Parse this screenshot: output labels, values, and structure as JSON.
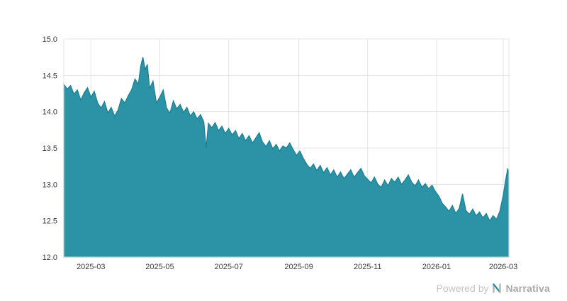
{
  "watermark": {
    "prefix": "Powered by",
    "brand": "Narrativa"
  },
  "chart_data": {
    "type": "area",
    "title": "",
    "xlabel": "",
    "ylabel": "",
    "legend": false,
    "grid": true,
    "ylim": [
      12.0,
      15.0
    ],
    "x_range": [
      "2025-02-05",
      "2026-03-06"
    ],
    "y_ticks": [
      12.0,
      12.5,
      13.0,
      13.5,
      14.0,
      14.5,
      15.0
    ],
    "x_ticks": [
      {
        "label": "2025-03",
        "date": "2025-03-01"
      },
      {
        "label": "2025-05",
        "date": "2025-05-01"
      },
      {
        "label": "2025-07",
        "date": "2025-07-01"
      },
      {
        "label": "2025-09",
        "date": "2025-09-01"
      },
      {
        "label": "2025-11",
        "date": "2025-11-01"
      },
      {
        "label": "2026-01",
        "date": "2026-01-01"
      },
      {
        "label": "2026-03",
        "date": "2026-03-01"
      }
    ],
    "colors": {
      "area": "#2b93a5",
      "line": "#1d7e91",
      "grid": "#e4e4e4",
      "tick_text": "#3c3c3c"
    },
    "points": [
      [
        "2025-02-05",
        14.38
      ],
      [
        "2025-02-08",
        14.31
      ],
      [
        "2025-02-11",
        14.36
      ],
      [
        "2025-02-14",
        14.24
      ],
      [
        "2025-02-17",
        14.3
      ],
      [
        "2025-02-20",
        14.16
      ],
      [
        "2025-02-23",
        14.26
      ],
      [
        "2025-02-26",
        14.33
      ],
      [
        "2025-03-01",
        14.2
      ],
      [
        "2025-03-04",
        14.28
      ],
      [
        "2025-03-07",
        14.12
      ],
      [
        "2025-03-10",
        14.05
      ],
      [
        "2025-03-13",
        14.14
      ],
      [
        "2025-03-16",
        13.98
      ],
      [
        "2025-03-19",
        14.06
      ],
      [
        "2025-03-22",
        13.94
      ],
      [
        "2025-03-25",
        14.02
      ],
      [
        "2025-03-28",
        14.18
      ],
      [
        "2025-03-31",
        14.12
      ],
      [
        "2025-04-03",
        14.22
      ],
      [
        "2025-04-06",
        14.3
      ],
      [
        "2025-04-09",
        14.45
      ],
      [
        "2025-04-12",
        14.38
      ],
      [
        "2025-04-14",
        14.62
      ],
      [
        "2025-04-16",
        14.75
      ],
      [
        "2025-04-18",
        14.58
      ],
      [
        "2025-04-20",
        14.65
      ],
      [
        "2025-04-22",
        14.32
      ],
      [
        "2025-04-25",
        14.42
      ],
      [
        "2025-04-28",
        14.12
      ],
      [
        "2025-05-01",
        14.2
      ],
      [
        "2025-05-04",
        14.3
      ],
      [
        "2025-05-07",
        14.05
      ],
      [
        "2025-05-10",
        13.98
      ],
      [
        "2025-05-13",
        14.15
      ],
      [
        "2025-05-16",
        14.04
      ],
      [
        "2025-05-19",
        14.1
      ],
      [
        "2025-05-22",
        13.99
      ],
      [
        "2025-05-25",
        14.06
      ],
      [
        "2025-05-28",
        13.94
      ],
      [
        "2025-05-31",
        14.0
      ],
      [
        "2025-06-03",
        13.9
      ],
      [
        "2025-06-06",
        13.96
      ],
      [
        "2025-06-09",
        13.86
      ],
      [
        "2025-06-11",
        13.5
      ],
      [
        "2025-06-13",
        13.84
      ],
      [
        "2025-06-16",
        13.78
      ],
      [
        "2025-06-19",
        13.85
      ],
      [
        "2025-06-22",
        13.74
      ],
      [
        "2025-06-25",
        13.8
      ],
      [
        "2025-06-28",
        13.7
      ],
      [
        "2025-07-01",
        13.77
      ],
      [
        "2025-07-04",
        13.68
      ],
      [
        "2025-07-07",
        13.74
      ],
      [
        "2025-07-10",
        13.63
      ],
      [
        "2025-07-13",
        13.7
      ],
      [
        "2025-07-16",
        13.6
      ],
      [
        "2025-07-19",
        13.67
      ],
      [
        "2025-07-22",
        13.57
      ],
      [
        "2025-07-25",
        13.64
      ],
      [
        "2025-07-28",
        13.71
      ],
      [
        "2025-07-31",
        13.58
      ],
      [
        "2025-08-03",
        13.52
      ],
      [
        "2025-08-06",
        13.6
      ],
      [
        "2025-08-09",
        13.49
      ],
      [
        "2025-08-12",
        13.55
      ],
      [
        "2025-08-15",
        13.46
      ],
      [
        "2025-08-18",
        13.53
      ],
      [
        "2025-08-21",
        13.5
      ],
      [
        "2025-08-24",
        13.57
      ],
      [
        "2025-08-27",
        13.48
      ],
      [
        "2025-08-30",
        13.4
      ],
      [
        "2025-09-02",
        13.46
      ],
      [
        "2025-09-05",
        13.36
      ],
      [
        "2025-09-08",
        13.28
      ],
      [
        "2025-09-11",
        13.22
      ],
      [
        "2025-09-14",
        13.28
      ],
      [
        "2025-09-17",
        13.19
      ],
      [
        "2025-09-20",
        13.26
      ],
      [
        "2025-09-23",
        13.16
      ],
      [
        "2025-09-26",
        13.23
      ],
      [
        "2025-09-29",
        13.13
      ],
      [
        "2025-10-02",
        13.2
      ],
      [
        "2025-10-05",
        13.1
      ],
      [
        "2025-10-08",
        13.17
      ],
      [
        "2025-10-11",
        13.08
      ],
      [
        "2025-10-14",
        13.14
      ],
      [
        "2025-10-17",
        13.2
      ],
      [
        "2025-10-20",
        13.1
      ],
      [
        "2025-10-23",
        13.16
      ],
      [
        "2025-10-26",
        13.22
      ],
      [
        "2025-10-29",
        13.12
      ],
      [
        "2025-11-01",
        13.07
      ],
      [
        "2025-11-04",
        13.02
      ],
      [
        "2025-11-07",
        13.1
      ],
      [
        "2025-11-10",
        13.0
      ],
      [
        "2025-11-13",
        12.96
      ],
      [
        "2025-11-16",
        13.06
      ],
      [
        "2025-11-19",
        12.98
      ],
      [
        "2025-11-22",
        13.08
      ],
      [
        "2025-11-25",
        13.03
      ],
      [
        "2025-11-28",
        13.1
      ],
      [
        "2025-12-01",
        13.0
      ],
      [
        "2025-12-04",
        13.06
      ],
      [
        "2025-12-07",
        13.13
      ],
      [
        "2025-12-10",
        13.03
      ],
      [
        "2025-12-13",
        12.98
      ],
      [
        "2025-12-16",
        13.06
      ],
      [
        "2025-12-19",
        12.96
      ],
      [
        "2025-12-22",
        13.01
      ],
      [
        "2025-12-25",
        12.94
      ],
      [
        "2025-12-28",
        12.99
      ],
      [
        "2025-12-31",
        12.9
      ],
      [
        "2026-01-03",
        12.84
      ],
      [
        "2026-01-06",
        12.74
      ],
      [
        "2026-01-09",
        12.69
      ],
      [
        "2026-01-12",
        12.63
      ],
      [
        "2026-01-15",
        12.71
      ],
      [
        "2026-01-18",
        12.6
      ],
      [
        "2026-01-21",
        12.67
      ],
      [
        "2026-01-24",
        12.87
      ],
      [
        "2026-01-27",
        12.64
      ],
      [
        "2026-01-30",
        12.59
      ],
      [
        "2026-02-02",
        12.66
      ],
      [
        "2026-02-05",
        12.57
      ],
      [
        "2026-02-08",
        12.62
      ],
      [
        "2026-02-11",
        12.54
      ],
      [
        "2026-02-14",
        12.6
      ],
      [
        "2026-02-17",
        12.5
      ],
      [
        "2026-02-20",
        12.57
      ],
      [
        "2026-02-23",
        12.52
      ],
      [
        "2026-02-26",
        12.63
      ],
      [
        "2026-03-01",
        12.85
      ],
      [
        "2026-03-03",
        13.05
      ],
      [
        "2026-03-05",
        13.22
      ],
      [
        "2026-03-06",
        13.12
      ]
    ]
  }
}
